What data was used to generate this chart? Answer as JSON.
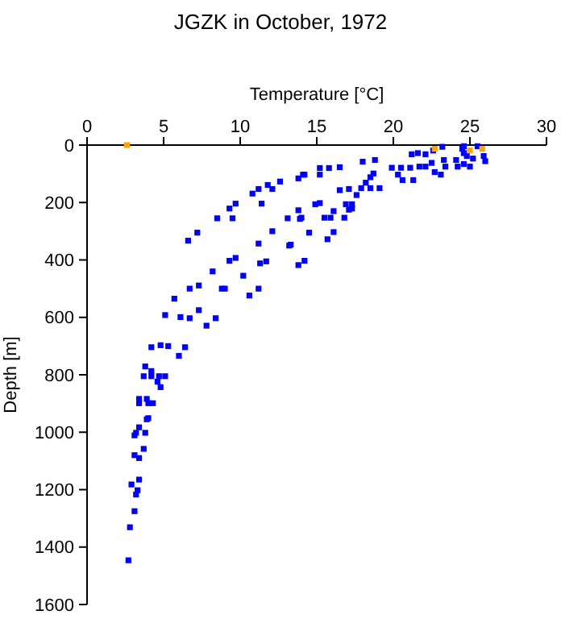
{
  "chart_data": {
    "type": "scatter",
    "title": "JGZK in October, 1972",
    "xlabel": "Temperature [°C]",
    "ylabel": "Depth [m]",
    "xlim": [
      0,
      30
    ],
    "xticks": [
      0,
      5,
      10,
      15,
      20,
      25,
      30
    ],
    "ylim": [
      1600,
      0
    ],
    "yticks": [
      0,
      200,
      400,
      600,
      800,
      1000,
      1200,
      1400,
      1600
    ],
    "marker": "square",
    "grid": false,
    "series": [
      {
        "color": "#0000ff",
        "x": [
          2.7,
          2.8,
          3.1,
          3.2,
          3.3,
          3.4,
          2.9,
          3.4,
          3.1,
          3.7,
          3.2,
          3.8,
          3.4,
          3.1,
          3.9,
          4.0,
          3.4,
          4.0,
          4.3,
          3.4,
          3.9,
          4.8,
          4.6,
          3.7,
          4.2,
          4.7,
          5.1,
          4.2,
          3.8,
          4.2,
          4.8,
          5.3,
          6.4,
          6.0,
          5.1,
          6.1,
          6.7,
          7.3,
          7.8,
          8.4,
          5.7,
          6.7,
          7.3,
          8.2,
          8.8,
          9.0,
          9.3,
          9.7,
          10.2,
          10.6,
          11.2,
          11.2,
          11.3,
          11.7,
          12.1,
          13.1,
          13.2,
          13.8,
          13.9,
          13.8,
          6.6,
          7.2,
          8.5,
          9.5,
          9.3,
          9.7,
          10.8,
          11.2,
          11.4,
          11.8,
          12.1,
          12.6,
          13.8,
          14.1,
          14.2,
          15.2,
          15.2,
          15.8,
          16.5,
          18.0,
          18.8,
          13.3,
          14.2,
          14.0,
          14.5,
          14.9,
          15.2,
          15.5,
          16.1,
          15.9,
          16.8,
          15.7,
          16.1,
          16.9,
          17.3,
          17.3,
          17.1,
          16.5,
          17.1,
          17.6,
          17.9,
          18.5,
          19.1,
          18.2,
          18.5,
          18.7,
          19.9,
          20.5,
          20.3,
          20.6,
          21.3,
          21.1,
          21.7,
          22.1,
          21.2,
          21.6,
          22.1,
          22.5,
          22.7,
          23.1,
          23.3,
          23.4,
          22.6,
          23.2,
          24.1,
          24.2,
          24.6,
          24.6,
          24.6,
          24.8,
          25.2,
          25.0,
          25.9,
          26.0,
          25.5,
          24.5
        ],
        "values": [
          1446,
          1331,
          1275,
          1217,
          1202,
          1165,
          1182,
          1090,
          1080,
          1058,
          1002,
          1002,
          983,
          1011,
          955,
          951,
          899,
          899,
          899,
          884,
          884,
          843,
          824,
          805,
          805,
          805,
          805,
          787,
          771,
          704,
          697,
          700,
          704,
          734,
          592,
          599,
          603,
          575,
          629,
          603,
          535,
          500,
          489,
          440,
          500,
          500,
          403,
          393,
          455,
          524,
          500,
          343,
          412,
          405,
          300,
          255,
          350,
          418,
          257,
          227,
          333,
          305,
          255,
          255,
          221,
          204,
          169,
          153,
          204,
          139,
          153,
          127,
          116,
          103,
          103,
          80,
          103,
          80,
          77,
          58,
          52,
          347,
          403,
          253,
          305,
          206,
          202,
          253,
          230,
          253,
          253,
          328,
          303,
          206,
          206,
          221,
          225,
          157,
          153,
          174,
          150,
          150,
          150,
          131,
          112,
          99,
          79,
          79,
          103,
          122,
          122,
          79,
          75,
          75,
          32,
          28,
          32,
          62,
          94,
          103,
          52,
          75,
          19,
          6,
          52,
          75,
          66,
          4,
          28,
          38,
          47,
          75,
          38,
          56,
          4,
          13
        ]
      },
      {
        "color": "#ffa500",
        "x": [
          2.6,
          22.7,
          25.0,
          25.8
        ],
        "values": [
          0,
          13,
          19,
          13
        ]
      }
    ]
  }
}
